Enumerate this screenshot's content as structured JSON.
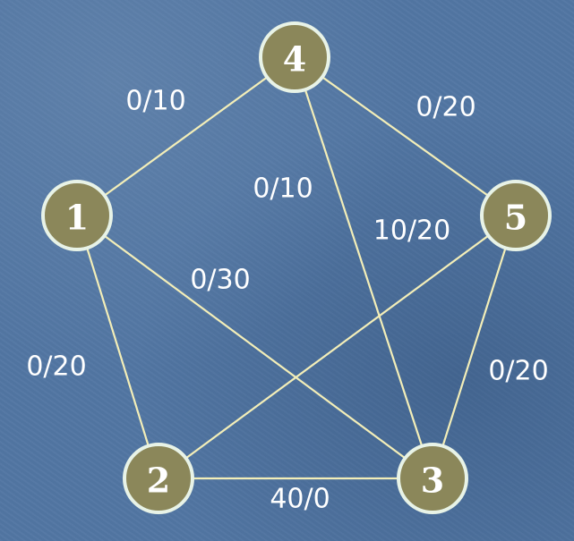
{
  "graph": {
    "nodes": [
      {
        "id": "1",
        "label": "1"
      },
      {
        "id": "2",
        "label": "2"
      },
      {
        "id": "3",
        "label": "3"
      },
      {
        "id": "4",
        "label": "4"
      },
      {
        "id": "5",
        "label": "5"
      }
    ],
    "edges": [
      {
        "from": "1",
        "to": "4",
        "label": "0/10"
      },
      {
        "from": "4",
        "to": "5",
        "label": "0/20"
      },
      {
        "from": "4",
        "to": "3",
        "label": "0/10"
      },
      {
        "from": "2",
        "to": "5",
        "label": "10/20"
      },
      {
        "from": "1",
        "to": "3",
        "label": "0/30"
      },
      {
        "from": "1",
        "to": "2",
        "label": "0/20"
      },
      {
        "from": "5",
        "to": "3",
        "label": "0/20"
      },
      {
        "from": "2",
        "to": "3",
        "label": "40/0"
      }
    ]
  },
  "colors": {
    "background": "#5276a3",
    "edge": "#f3eeb8",
    "node_fill": "#8b875a",
    "node_stroke": "#e8f3e7",
    "text": "#ffffff"
  }
}
